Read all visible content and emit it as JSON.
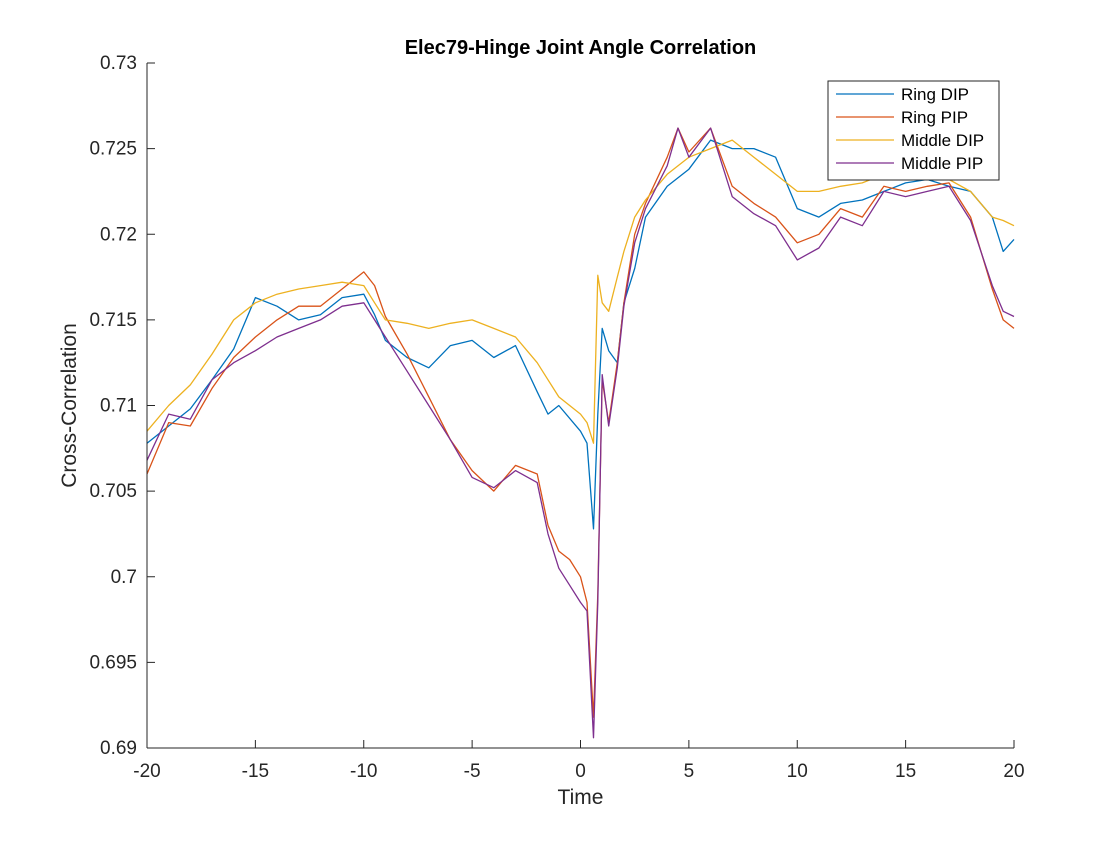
{
  "chart_data": {
    "type": "line",
    "title": "Elec79-Hinge Joint Angle Correlation",
    "xlabel": "Time",
    "ylabel": "Cross-Correlation",
    "xlim": [
      -20,
      20
    ],
    "ylim": [
      0.69,
      0.73
    ],
    "xticks": [
      "-20",
      "-15",
      "-10",
      "-5",
      "0",
      "5",
      "10",
      "15",
      "20"
    ],
    "yticks": [
      "0.69",
      "0.695",
      "0.7",
      "0.705",
      "0.71",
      "0.715",
      "0.72",
      "0.725",
      "0.73"
    ],
    "grid": false,
    "legend_position": "top-right",
    "series": [
      {
        "name": "Ring DIP",
        "color": "#0072BD",
        "x": [
          -20,
          -19,
          -18,
          -17,
          -16,
          -15,
          -14,
          -13,
          -12,
          -11,
          -10,
          -9.5,
          -9,
          -8,
          -7,
          -6,
          -5,
          -4,
          -3,
          -2,
          -1.5,
          -1,
          0,
          0.3,
          0.6,
          0.8,
          1,
          1.3,
          1.7,
          2,
          2.5,
          3,
          4,
          5,
          6,
          7,
          8,
          9,
          10,
          11,
          12,
          13,
          14,
          15,
          16,
          17,
          18,
          19,
          19.5,
          20
        ],
        "y": [
          0.7078,
          0.7088,
          0.7098,
          0.7115,
          0.7133,
          0.7163,
          0.7158,
          0.715,
          0.7153,
          0.7163,
          0.7165,
          0.7153,
          0.7138,
          0.7128,
          0.7122,
          0.7135,
          0.7138,
          0.7128,
          0.7135,
          0.7108,
          0.7095,
          0.71,
          0.7085,
          0.7078,
          0.7028,
          0.7095,
          0.7145,
          0.7132,
          0.7125,
          0.716,
          0.718,
          0.721,
          0.7228,
          0.7238,
          0.7255,
          0.725,
          0.725,
          0.7245,
          0.7215,
          0.721,
          0.7218,
          0.722,
          0.7225,
          0.723,
          0.7232,
          0.7228,
          0.7225,
          0.721,
          0.719,
          0.7197
        ]
      },
      {
        "name": "Ring PIP",
        "color": "#D95319",
        "x": [
          -20,
          -19,
          -18,
          -17,
          -16,
          -15,
          -14,
          -13,
          -12,
          -11,
          -10,
          -9.5,
          -9,
          -8,
          -7,
          -6,
          -5,
          -4,
          -3,
          -2,
          -1.5,
          -1,
          -0.5,
          0,
          0.3,
          0.6,
          0.8,
          1,
          1.3,
          1.7,
          2,
          2.5,
          3,
          4,
          4.5,
          5,
          6,
          7,
          8,
          9,
          10,
          11,
          12,
          13,
          14,
          15,
          16,
          17,
          18,
          19,
          19.5,
          20
        ],
        "y": [
          0.706,
          0.709,
          0.7088,
          0.711,
          0.7128,
          0.714,
          0.715,
          0.7158,
          0.7158,
          0.7168,
          0.7178,
          0.717,
          0.7152,
          0.713,
          0.7105,
          0.708,
          0.7062,
          0.705,
          0.7065,
          0.706,
          0.703,
          0.7015,
          0.701,
          0.7,
          0.6985,
          0.6918,
          0.699,
          0.7115,
          0.709,
          0.7125,
          0.716,
          0.72,
          0.7218,
          0.7245,
          0.7262,
          0.7248,
          0.7262,
          0.7228,
          0.7218,
          0.721,
          0.7195,
          0.72,
          0.7215,
          0.721,
          0.7228,
          0.7225,
          0.7228,
          0.723,
          0.721,
          0.7168,
          0.715,
          0.7145
        ]
      },
      {
        "name": "Middle DIP",
        "color": "#EDB120",
        "x": [
          -20,
          -19,
          -18,
          -17,
          -16,
          -15,
          -14,
          -13,
          -12,
          -11,
          -10,
          -9.5,
          -9,
          -8,
          -7,
          -6,
          -5,
          -4,
          -3,
          -2,
          -1.5,
          -1,
          0,
          0.3,
          0.6,
          0.8,
          1,
          1.3,
          1.7,
          2,
          2.5,
          3,
          4,
          5,
          6,
          7,
          8,
          9,
          10,
          11,
          12,
          13,
          14,
          15,
          16,
          17,
          18,
          19,
          19.5,
          20
        ],
        "y": [
          0.7085,
          0.71,
          0.7112,
          0.713,
          0.715,
          0.716,
          0.7165,
          0.7168,
          0.717,
          0.7172,
          0.717,
          0.716,
          0.715,
          0.7148,
          0.7145,
          0.7148,
          0.715,
          0.7145,
          0.714,
          0.7125,
          0.7115,
          0.7105,
          0.7095,
          0.709,
          0.7078,
          0.7176,
          0.716,
          0.7155,
          0.7175,
          0.719,
          0.721,
          0.722,
          0.7235,
          0.7245,
          0.725,
          0.7255,
          0.7245,
          0.7235,
          0.7225,
          0.7225,
          0.7228,
          0.723,
          0.7235,
          0.7235,
          0.7235,
          0.7232,
          0.7225,
          0.721,
          0.7208,
          0.7205
        ]
      },
      {
        "name": "Middle PIP",
        "color": "#7E2F8E",
        "x": [
          -20,
          -19,
          -18,
          -17,
          -16,
          -15,
          -14,
          -13,
          -12,
          -11,
          -10,
          -9.5,
          -9,
          -8,
          -7,
          -6,
          -5,
          -4,
          -3,
          -2,
          -1.5,
          -1,
          -0.5,
          0,
          0.3,
          0.6,
          0.8,
          1,
          1.3,
          1.7,
          2,
          2.5,
          3,
          4,
          4.5,
          5,
          6,
          7,
          8,
          9,
          10,
          11,
          12,
          13,
          14,
          15,
          16,
          17,
          18,
          19,
          19.5,
          20
        ],
        "y": [
          0.7068,
          0.7095,
          0.7092,
          0.7115,
          0.7125,
          0.7132,
          0.714,
          0.7145,
          0.715,
          0.7158,
          0.716,
          0.715,
          0.714,
          0.712,
          0.71,
          0.708,
          0.7058,
          0.7052,
          0.7062,
          0.7055,
          0.7025,
          0.7005,
          0.6995,
          0.6985,
          0.698,
          0.6906,
          0.6985,
          0.7118,
          0.7088,
          0.7122,
          0.7158,
          0.7195,
          0.7215,
          0.724,
          0.7262,
          0.7245,
          0.7262,
          0.7222,
          0.7212,
          0.7205,
          0.7185,
          0.7192,
          0.721,
          0.7205,
          0.7225,
          0.7222,
          0.7225,
          0.7228,
          0.7208,
          0.717,
          0.7155,
          0.7152
        ]
      }
    ]
  }
}
